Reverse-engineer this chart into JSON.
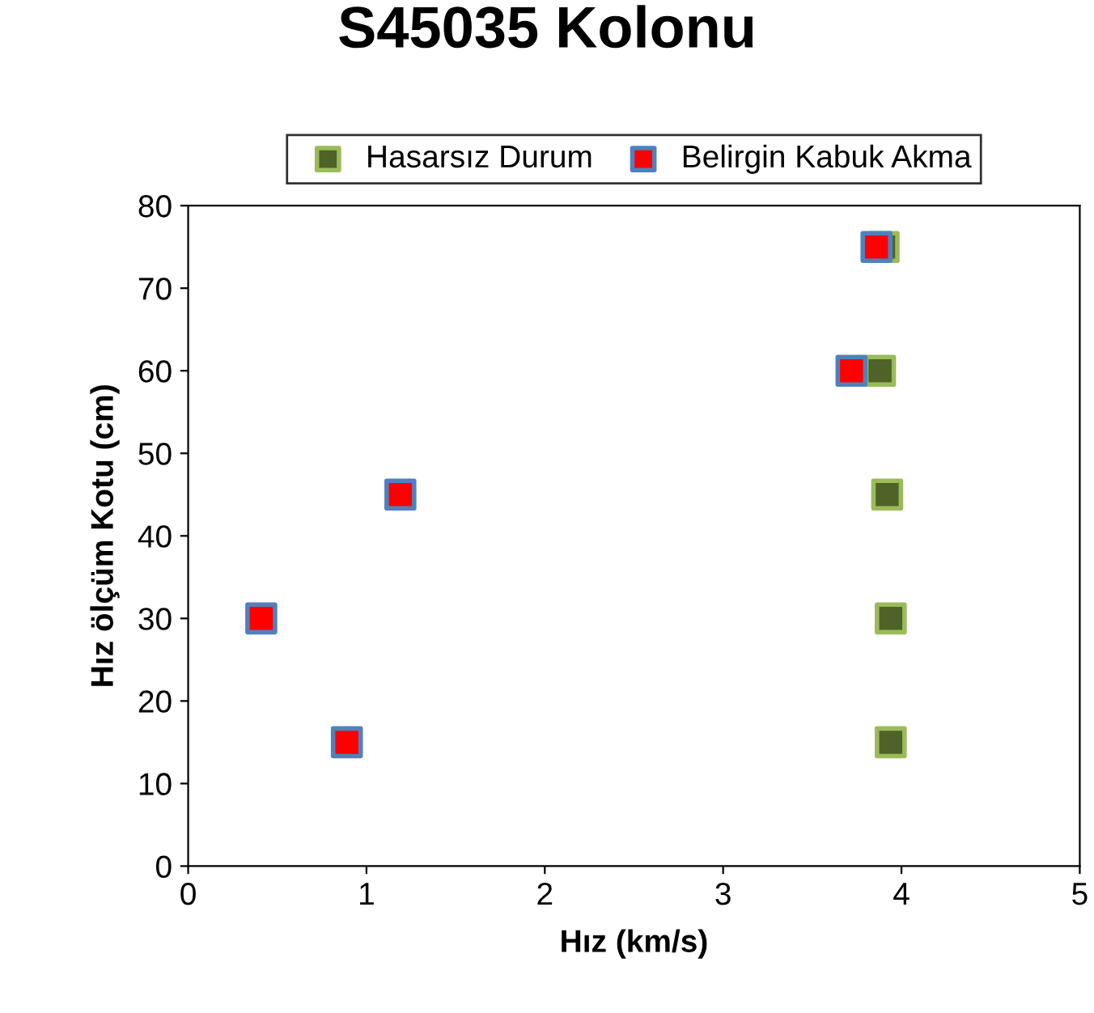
{
  "chart_data": {
    "type": "scatter",
    "title": "S45035 Kolonu",
    "xlabel": "Hız (km/s)",
    "ylabel": "Hız ölçüm Kotu (cm)",
    "series": [
      {
        "name": "Hasarsız Durum",
        "color": "#4f6228",
        "x": [
          3.94,
          3.94,
          3.92,
          3.88,
          3.9
        ],
        "values": [
          15,
          30,
          45,
          60,
          75
        ]
      },
      {
        "name": "Belirgin Kabuk Akma",
        "color": "#ff0000",
        "x": [
          0.89,
          0.41,
          1.19,
          3.72,
          3.86
        ],
        "values": [
          15,
          30,
          45,
          60,
          75
        ]
      }
    ],
    "xlim": [
      0,
      5
    ],
    "ylim": [
      0,
      80
    ],
    "xticks": [
      0,
      1,
      2,
      3,
      4,
      5
    ],
    "yticks": [
      0,
      10,
      20,
      30,
      40,
      50,
      60,
      70,
      80
    ],
    "marker": "square",
    "grid": false,
    "legend": "top"
  }
}
